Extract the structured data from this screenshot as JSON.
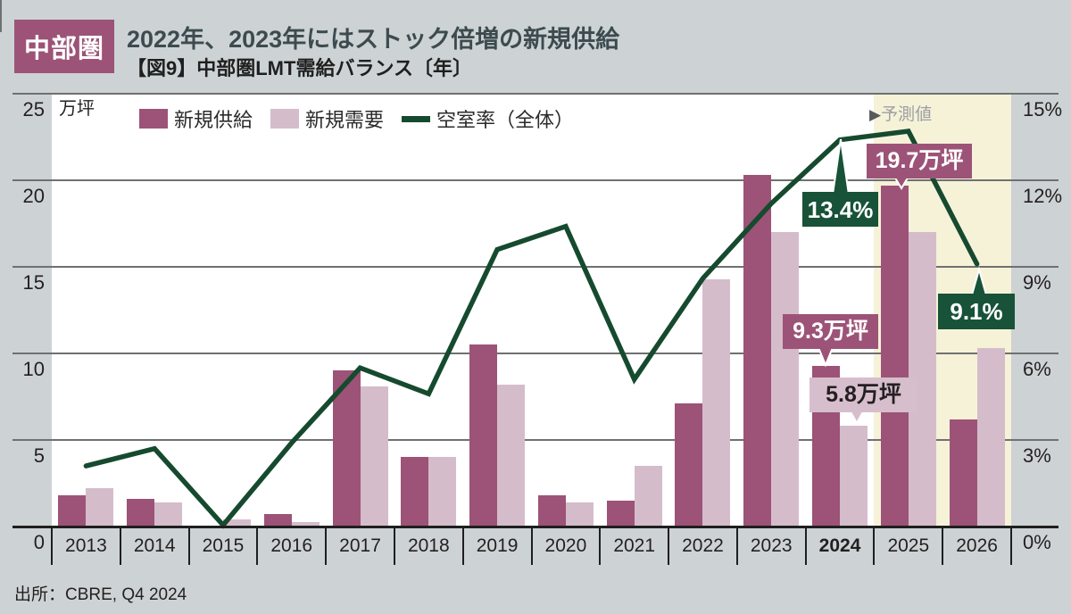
{
  "header": {
    "badge": "中部圏",
    "title": "2022年、2023年にはストック倍増の新規供給",
    "subtitle": "【図9】中部圏LMT需給バランス〔年〕"
  },
  "legend": [
    {
      "label": "新規供給",
      "swatch": "bar",
      "color": "#9C5377"
    },
    {
      "label": "新規需要",
      "swatch": "bar",
      "color": "#D5BCCB"
    },
    {
      "label": "空室率（全体）",
      "swatch": "line",
      "color": "#164A2F"
    }
  ],
  "axes": {
    "left_unit": "万坪",
    "left_ticks": [
      "25",
      "20",
      "15",
      "10",
      "5",
      "0"
    ],
    "right_ticks": [
      "15%",
      "12%",
      "9%",
      "6%",
      "3%",
      "0%"
    ]
  },
  "forecast": {
    "marker": "▶",
    "label": "予測値",
    "from_category": "2025"
  },
  "source": "出所：CBRE, Q4 2024",
  "chart_data": {
    "type": "bar+line",
    "categories": [
      "2013",
      "2014",
      "2015",
      "2016",
      "2017",
      "2018",
      "2019",
      "2020",
      "2021",
      "2022",
      "2023",
      "2024",
      "2025",
      "2026"
    ],
    "bold_category": "2024",
    "ylim_left": [
      0,
      25
    ],
    "ylim_right": [
      0,
      15
    ],
    "grid": true,
    "legend_position": "top-left-inside",
    "series": [
      {
        "name": "新規供給",
        "type": "bar",
        "axis": "left",
        "unit": "万坪",
        "color": "#9C5377",
        "values": [
          1.8,
          1.6,
          0,
          0.7,
          9.0,
          4.0,
          10.5,
          1.8,
          1.5,
          7.1,
          20.3,
          9.3,
          19.7,
          6.2
        ]
      },
      {
        "name": "新規需要",
        "type": "bar",
        "axis": "left",
        "unit": "万坪",
        "color": "#D5BCCB",
        "values": [
          2.2,
          1.4,
          0.4,
          0.25,
          8.1,
          4.0,
          8.2,
          1.4,
          3.5,
          14.3,
          17.0,
          5.8,
          17.0,
          10.3
        ]
      },
      {
        "name": "空室率（全体）",
        "type": "line",
        "axis": "right",
        "unit": "%",
        "color": "#164A2F",
        "values": [
          2.1,
          2.7,
          0.05,
          2.9,
          5.5,
          4.6,
          9.6,
          10.4,
          5.1,
          8.6,
          11.2,
          13.4,
          13.7,
          9.1
        ]
      }
    ],
    "annotations": [
      {
        "id": "vacancy-2024",
        "text": "13.4%",
        "variant": "green",
        "series": "空室率（全体）",
        "category": "2024"
      },
      {
        "id": "supply-2025",
        "text": "19.7万坪",
        "variant": "purple",
        "series": "新規供給",
        "category": "2025"
      },
      {
        "id": "supply-2024",
        "text": "9.3万坪",
        "variant": "purple",
        "series": "新規供給",
        "category": "2024"
      },
      {
        "id": "demand-2024",
        "text": "5.8万坪",
        "variant": "pink",
        "series": "新規需要",
        "category": "2024"
      },
      {
        "id": "vacancy-2026",
        "text": "9.1%",
        "variant": "green",
        "series": "空室率（全体）",
        "category": "2026"
      }
    ]
  },
  "colors": {
    "page_bg": "#CDD3D4",
    "plot_bg": "#FFFFFF",
    "forecast_band": "#F6F2D8",
    "gridline": "#6F7071",
    "axis_line": "#1F1F1F",
    "supply_bar": "#9C5377",
    "demand_bar": "#D5BCCB",
    "vacancy_line": "#164A2F",
    "callout_green": "#175239",
    "callout_purple": "#9C5377",
    "callout_pink": "#D7BECC",
    "badge_bg": "#9C5377",
    "title_text": "#3D4B50"
  }
}
